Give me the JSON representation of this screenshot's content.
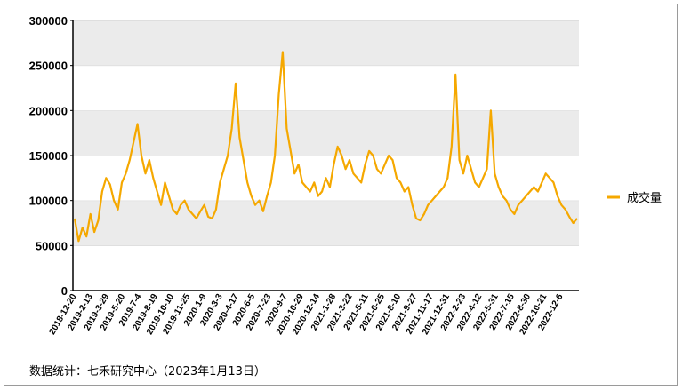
{
  "source_note": "数据统计：七禾研究中心（2023年1月13日）",
  "chart_data": {
    "type": "line",
    "title": "",
    "xlabel": "",
    "ylabel": "",
    "ylim": [
      0,
      300000
    ],
    "yticks": [
      0,
      50000,
      100000,
      150000,
      200000,
      250000,
      300000
    ],
    "grid": "horizontal bands",
    "legend_position": "right",
    "colors": {
      "series": "#F5A800",
      "band": "#ebebeb",
      "axis": "#000000"
    },
    "x_tick_labels": [
      "2018-12-20",
      "2019-2-13",
      "2019-3-29",
      "2019-5-20",
      "2019-7-4",
      "2019-8-19",
      "2019-10-10",
      "2019-11-25",
      "2020-1-9",
      "2020-3-3",
      "2020-4-17",
      "2020-6-5",
      "2020-7-23",
      "2020-9-7",
      "2020-10-29",
      "2020-12-14",
      "2021-1-28",
      "2021-3-22",
      "2021-5-11",
      "2021-6-25",
      "2021-8-10",
      "2021-9-27",
      "2021-11-17",
      "2021-12-31",
      "2022-2-23",
      "2022-4-12",
      "2022-5-31",
      "2022-7-15",
      "2022-8-30",
      "2022-10-21",
      "2022-12-6"
    ],
    "series": [
      {
        "name": "成交量",
        "values": [
          80000,
          55000,
          70000,
          60000,
          85000,
          65000,
          78000,
          110000,
          125000,
          118000,
          100000,
          90000,
          120000,
          130000,
          145000,
          165000,
          185000,
          150000,
          130000,
          145000,
          125000,
          110000,
          95000,
          120000,
          105000,
          90000,
          85000,
          95000,
          100000,
          90000,
          85000,
          80000,
          88000,
          95000,
          82000,
          80000,
          90000,
          120000,
          135000,
          150000,
          180000,
          230000,
          170000,
          145000,
          120000,
          105000,
          95000,
          100000,
          88000,
          105000,
          120000,
          150000,
          218000,
          265000,
          180000,
          155000,
          130000,
          140000,
          120000,
          115000,
          110000,
          120000,
          105000,
          110000,
          125000,
          115000,
          140000,
          160000,
          150000,
          135000,
          145000,
          130000,
          125000,
          120000,
          140000,
          155000,
          150000,
          135000,
          130000,
          140000,
          150000,
          145000,
          125000,
          120000,
          110000,
          115000,
          95000,
          80000,
          78000,
          85000,
          95000,
          100000,
          105000,
          110000,
          115000,
          125000,
          160000,
          240000,
          145000,
          130000,
          150000,
          135000,
          120000,
          115000,
          125000,
          135000,
          200000,
          130000,
          115000,
          105000,
          100000,
          90000,
          85000,
          95000,
          100000,
          105000,
          110000,
          115000,
          110000,
          120000,
          130000,
          125000,
          120000,
          105000,
          95000,
          90000,
          82000,
          75000,
          80000
        ]
      }
    ]
  }
}
